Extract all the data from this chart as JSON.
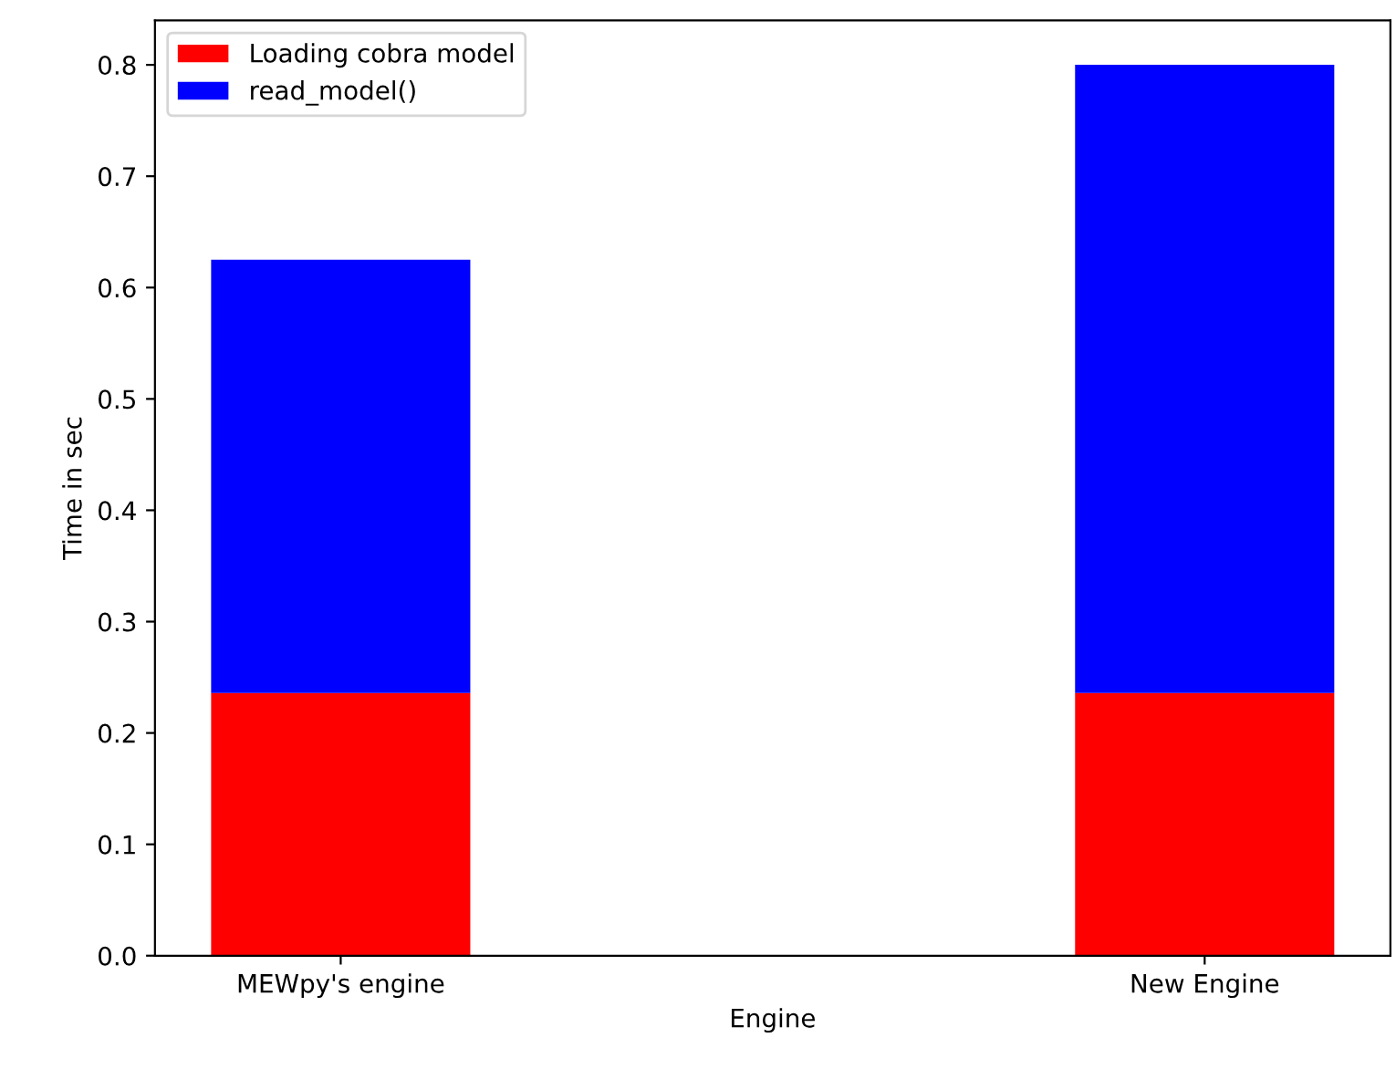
{
  "chart_data": {
    "type": "bar",
    "stacked": true,
    "xlabel": "Engine",
    "ylabel": "Time in sec",
    "categories": [
      "MEWpy's engine",
      "New Engine"
    ],
    "series": [
      {
        "name": "Loading cobra model",
        "color": "#ff0000",
        "values": [
          0.236,
          0.236
        ]
      },
      {
        "name": "read_model()",
        "color": "#0000ff",
        "values": [
          0.389,
          0.564
        ]
      }
    ],
    "ylim": [
      0,
      0.84
    ],
    "yticks": [
      {
        "value": 0,
        "label": "0.0"
      },
      0.1,
      0.2,
      0.3,
      0.4,
      0.5,
      0.6,
      0.7,
      0.8
    ],
    "legend": "top left",
    "grid": false
  }
}
